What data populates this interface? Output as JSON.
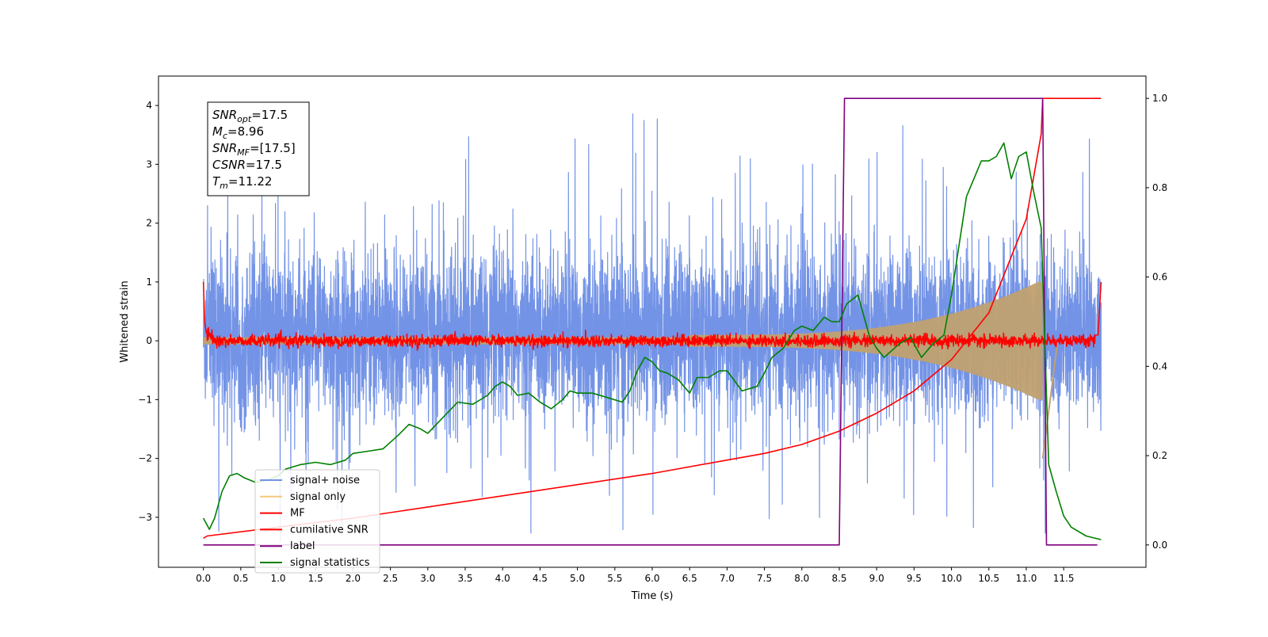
{
  "chart_data": {
    "type": "line",
    "xlabel": "Time (s)",
    "ylabel": "Whitened strain",
    "xlim": [
      -0.6,
      12.6
    ],
    "ylim": [
      -3.85,
      4.5
    ],
    "y2lim": [
      -0.05,
      1.05
    ],
    "xticks": [
      "0.0",
      "0.5",
      "1.0",
      "1.5",
      "2.0",
      "2.5",
      "3.0",
      "3.5",
      "4.0",
      "4.5",
      "5.0",
      "5.5",
      "6.0",
      "6.5",
      "7.0",
      "7.5",
      "8.0",
      "8.5",
      "9.0",
      "9.5",
      "10.0",
      "10.5",
      "11.0",
      "11.5"
    ],
    "yticks": [
      "−3",
      "−2",
      "−1",
      "0",
      "1",
      "2",
      "3",
      "4"
    ],
    "y2ticks": [
      "0.0",
      "0.2",
      "0.4",
      "0.6",
      "0.8",
      "1.0"
    ],
    "annotation": {
      "lines": [
        {
          "sym": "SNR",
          "sub": "opt",
          "val": "=17.5"
        },
        {
          "sym": "M",
          "sub": "c",
          "val": "=8.96"
        },
        {
          "sym": "SNR",
          "sub": "MF",
          "val": "=[17.5]"
        },
        {
          "sym": "CSNR",
          "sub": "",
          "val": "=17.5"
        },
        {
          "sym": "T",
          "sub": "m",
          "val": "=11.22"
        }
      ]
    },
    "series": [
      {
        "name": "signal+ noise",
        "color": "#7393e6",
        "axis": "left",
        "kind": "noise",
        "sigma": 0.95,
        "t_range": [
          0,
          12
        ]
      },
      {
        "name": "signal only",
        "color": "#f5c97a",
        "axis": "left",
        "kind": "chirp",
        "t_range": [
          0,
          11.22
        ],
        "amplitude_end": 1.0
      },
      {
        "name": "MF",
        "color": "#ff0000",
        "axis": "left",
        "kind": "matched-filter",
        "level": 0.0,
        "noise": 0.05,
        "edge_value": 1.0
      },
      {
        "name": "cumilative SNR",
        "color": "#ff0000",
        "axis": "right",
        "x": [
          0.0,
          0.05,
          1.0,
          2.0,
          3.0,
          4.0,
          5.0,
          6.0,
          7.0,
          7.5,
          8.0,
          8.5,
          9.0,
          9.5,
          10.0,
          10.5,
          11.0,
          11.2,
          11.22,
          12.0
        ],
        "y": [
          0.015,
          0.02,
          0.04,
          0.06,
          0.085,
          0.11,
          0.135,
          0.16,
          0.19,
          0.205,
          0.225,
          0.255,
          0.295,
          0.345,
          0.415,
          0.52,
          0.73,
          0.92,
          1.0,
          1.0
        ]
      },
      {
        "name": "label",
        "color": "#800080",
        "axis": "right",
        "x": [
          0.0,
          8.5,
          8.57,
          11.22,
          11.27,
          11.95
        ],
        "y": [
          0.0,
          0.0,
          1.0,
          1.0,
          0.0,
          0.0
        ]
      },
      {
        "name": "signal statistics",
        "color": "#008000",
        "axis": "right",
        "x": [
          0.0,
          0.08,
          0.15,
          0.25,
          0.35,
          0.45,
          0.55,
          0.7,
          0.85,
          1.0,
          1.1,
          1.3,
          1.5,
          1.7,
          1.9,
          2.0,
          2.2,
          2.4,
          2.5,
          2.6,
          2.75,
          2.9,
          3.0,
          3.2,
          3.4,
          3.6,
          3.8,
          3.9,
          4.0,
          4.1,
          4.2,
          4.35,
          4.5,
          4.65,
          4.8,
          4.9,
          5.0,
          5.2,
          5.4,
          5.6,
          5.7,
          5.8,
          5.9,
          6.0,
          6.1,
          6.2,
          6.35,
          6.5,
          6.6,
          6.75,
          6.9,
          7.0,
          7.2,
          7.4,
          7.5,
          7.6,
          7.75,
          7.9,
          8.0,
          8.15,
          8.3,
          8.4,
          8.5,
          8.6,
          8.75,
          8.9,
          9.0,
          9.1,
          9.3,
          9.45,
          9.6,
          9.75,
          9.9,
          10.0,
          10.2,
          10.4,
          10.5,
          10.6,
          10.7,
          10.8,
          10.9,
          11.0,
          11.1,
          11.2,
          11.3,
          11.4,
          11.5,
          11.6,
          11.8,
          12.0
        ],
        "y": [
          0.06,
          0.035,
          0.06,
          0.12,
          0.155,
          0.16,
          0.15,
          0.14,
          0.145,
          0.155,
          0.17,
          0.18,
          0.185,
          0.18,
          0.19,
          0.205,
          0.21,
          0.215,
          0.23,
          0.245,
          0.27,
          0.26,
          0.25,
          0.285,
          0.32,
          0.315,
          0.335,
          0.355,
          0.365,
          0.355,
          0.335,
          0.34,
          0.32,
          0.305,
          0.325,
          0.345,
          0.34,
          0.34,
          0.33,
          0.32,
          0.345,
          0.39,
          0.42,
          0.41,
          0.39,
          0.385,
          0.37,
          0.34,
          0.375,
          0.375,
          0.39,
          0.39,
          0.345,
          0.355,
          0.385,
          0.42,
          0.44,
          0.48,
          0.49,
          0.48,
          0.51,
          0.5,
          0.5,
          0.54,
          0.56,
          0.47,
          0.44,
          0.42,
          0.45,
          0.465,
          0.42,
          0.45,
          0.47,
          0.56,
          0.78,
          0.86,
          0.86,
          0.87,
          0.9,
          0.82,
          0.87,
          0.88,
          0.79,
          0.71,
          0.18,
          0.12,
          0.065,
          0.04,
          0.02,
          0.012
        ]
      }
    ],
    "legend": {
      "position": "lower-left",
      "entries": [
        "signal+ noise",
        "signal only",
        "MF",
        "cumilative SNR",
        "label",
        "signal statistics"
      ]
    }
  }
}
